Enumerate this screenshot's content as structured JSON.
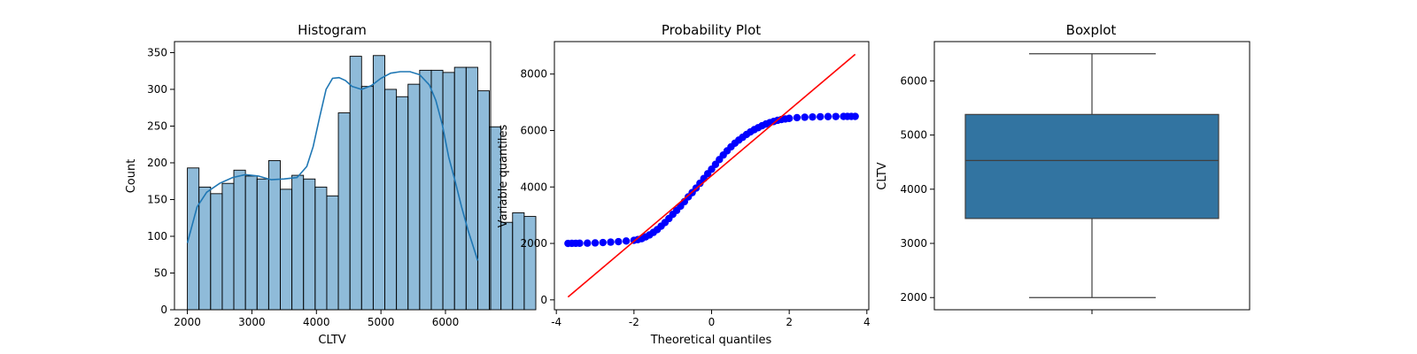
{
  "chart_data": [
    {
      "type": "bar",
      "subtype": "histogram",
      "title": "Histogram",
      "xlabel": "CLTV",
      "ylabel": "Count",
      "xlim": [
        1800,
        6700
      ],
      "ylim": [
        0,
        365
      ],
      "xticks": [
        2000,
        3000,
        4000,
        5000,
        6000
      ],
      "yticks": [
        0,
        50,
        100,
        150,
        200,
        250,
        300,
        350
      ],
      "bin_start": 2000,
      "bin_width": 180,
      "counts": [
        193,
        167,
        158,
        172,
        190,
        182,
        178,
        203,
        164,
        183,
        178,
        167,
        155,
        268,
        345,
        304,
        346,
        300,
        290,
        307,
        326,
        326,
        323,
        330,
        330,
        298,
        249,
        119,
        132,
        127
      ],
      "bar_color": "#1f77b4",
      "kde": {
        "x": [
          2000,
          2150,
          2300,
          2500,
          2700,
          2900,
          3100,
          3300,
          3500,
          3700,
          3850,
          3950,
          4050,
          4150,
          4250,
          4350,
          4450,
          4550,
          4700,
          4850,
          5000,
          5150,
          5300,
          5450,
          5600,
          5750,
          5850,
          5950,
          6050,
          6150,
          6250,
          6350,
          6500
        ],
        "y": [
          91,
          140,
          160,
          172,
          180,
          184,
          182,
          177,
          178,
          180,
          195,
          222,
          262,
          300,
          315,
          316,
          312,
          304,
          300,
          305,
          315,
          322,
          324,
          324,
          320,
          306,
          285,
          252,
          208,
          175,
          140,
          108,
          67
        ]
      },
      "grid": false
    },
    {
      "type": "scatter",
      "subtype": "probability-plot",
      "title": "Probability Plot",
      "xlabel": "Theoretical quantiles",
      "ylabel": "Variable quantiles",
      "xlim": [
        -4.05,
        4.05
      ],
      "ylim": [
        -350,
        9150
      ],
      "xticks": [
        -4,
        -2,
        0,
        2,
        4
      ],
      "yticks": [
        0,
        2000,
        4000,
        6000,
        8000
      ],
      "points": {
        "x": [
          -3.7,
          -3.6,
          -3.5,
          -3.4,
          -3.2,
          -3.0,
          -2.8,
          -2.6,
          -2.4,
          -2.2,
          -2.0,
          -1.9,
          -1.8,
          -1.7,
          -1.6,
          -1.5,
          -1.4,
          -1.3,
          -1.2,
          -1.1,
          -1.0,
          -0.9,
          -0.8,
          -0.7,
          -0.6,
          -0.5,
          -0.4,
          -0.3,
          -0.2,
          -0.1,
          0.0,
          0.1,
          0.2,
          0.3,
          0.4,
          0.5,
          0.6,
          0.7,
          0.8,
          0.9,
          1.0,
          1.1,
          1.2,
          1.3,
          1.4,
          1.5,
          1.6,
          1.7,
          1.8,
          1.9,
          2.0,
          2.2,
          2.4,
          2.6,
          2.8,
          3.0,
          3.2,
          3.4,
          3.5,
          3.6,
          3.7
        ],
        "y": [
          2000,
          2002,
          2004,
          2006,
          2010,
          2018,
          2030,
          2045,
          2063,
          2085,
          2110,
          2135,
          2170,
          2230,
          2300,
          2390,
          2490,
          2610,
          2740,
          2880,
          3030,
          3170,
          3320,
          3480,
          3650,
          3800,
          3960,
          4130,
          4300,
          4470,
          4630,
          4800,
          4970,
          5130,
          5280,
          5420,
          5550,
          5660,
          5760,
          5860,
          5950,
          6030,
          6100,
          6170,
          6230,
          6280,
          6320,
          6360,
          6390,
          6410,
          6430,
          6455,
          6470,
          6480,
          6488,
          6493,
          6496,
          6498,
          6499,
          6500,
          6500
        ]
      },
      "fit_line": {
        "x": [
          -3.7,
          3.7
        ],
        "y": [
          100,
          8700
        ]
      },
      "marker_color": "#0000ff",
      "line_color": "#ff0000",
      "grid": false
    },
    {
      "type": "box",
      "title": "Boxplot",
      "xlabel": "",
      "ylabel": "CLTV",
      "ylim": [
        1775,
        6725
      ],
      "yticks": [
        2000,
        3000,
        4000,
        5000,
        6000
      ],
      "min": 2000,
      "q1": 3460,
      "median": 4530,
      "q3": 5380,
      "max": 6500,
      "box_color": "#3274a1",
      "grid": false
    }
  ]
}
